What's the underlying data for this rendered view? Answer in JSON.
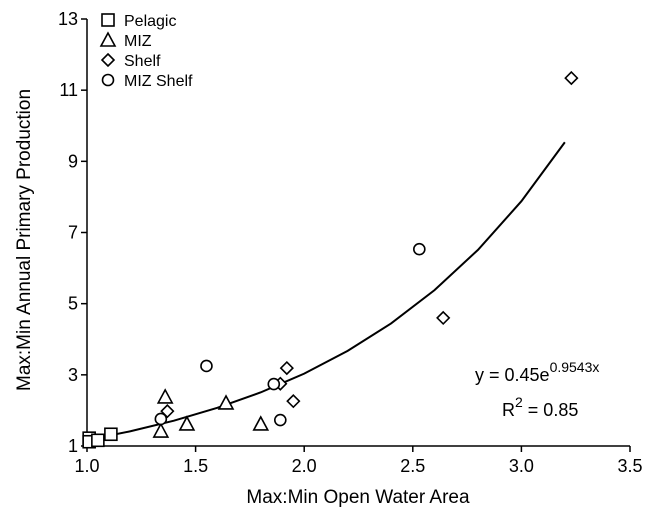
{
  "chart_data": {
    "type": "scatter",
    "xlabel": "Max:Min Open Water Area",
    "ylabel": "Max:Min Annual Primary Production",
    "xlim": [
      1.0,
      3.5
    ],
    "xticks": [
      {
        "value": 1.0,
        "label": "1.0"
      },
      1.5,
      {
        "value": 2.0,
        "label": "2.0"
      },
      2.5,
      {
        "value": 3.0,
        "label": "3.0"
      },
      3.5
    ],
    "ylim": [
      1,
      13
    ],
    "yticks": [
      1,
      3,
      5,
      7,
      9,
      11,
      13
    ],
    "legend": "top-left",
    "series": [
      {
        "name": "Pelagic",
        "marker": "square",
        "color": "#000000",
        "x": [
          1.01,
          1.01,
          1.05,
          1.11
        ],
        "values": [
          1.22,
          1.12,
          1.16,
          1.33
        ]
      },
      {
        "name": "MIZ",
        "marker": "triangle",
        "color": "#000000",
        "x": [
          1.36,
          1.34,
          1.46,
          1.64,
          1.8
        ],
        "values": [
          2.38,
          1.42,
          1.62,
          2.21,
          1.62
        ]
      },
      {
        "name": "Shelf",
        "marker": "diamond",
        "color": "#000000",
        "x": [
          1.37,
          1.89,
          1.92,
          1.95,
          2.64,
          3.23
        ],
        "values": [
          1.98,
          2.75,
          3.19,
          2.26,
          4.6,
          11.34
        ]
      },
      {
        "name": "MIZ Shelf",
        "marker": "circle",
        "color": "#000000",
        "x": [
          1.34,
          1.55,
          1.86,
          1.89,
          2.53
        ],
        "values": [
          1.76,
          3.25,
          2.74,
          1.73,
          6.53
        ]
      }
    ],
    "fit": {
      "color": "#000000",
      "x": [
        1.0,
        1.2,
        1.4,
        1.6,
        1.8,
        2.0,
        2.2,
        2.4,
        2.6,
        2.8,
        3.0,
        3.2
      ],
      "values": [
        1.169,
        1.414,
        1.712,
        2.072,
        2.507,
        3.034,
        3.673,
        4.445,
        5.38,
        6.512,
        7.88,
        9.537
      ]
    },
    "annotations": {
      "equation": "y = 0.45e",
      "exponent": "0.9543x",
      "r_label": "R",
      "r_sup": "2",
      "r_value": " = 0.85"
    }
  }
}
